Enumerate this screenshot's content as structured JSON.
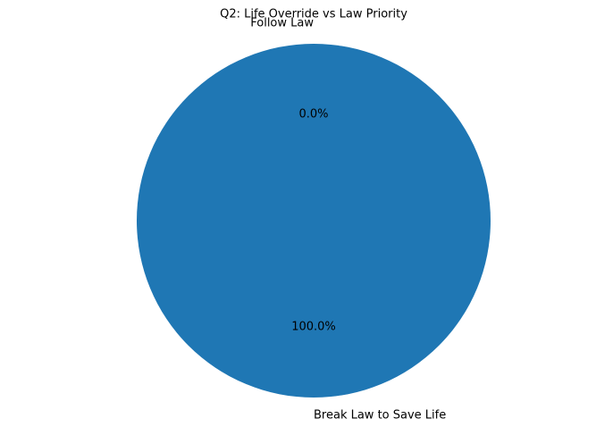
{
  "chart_data": {
    "type": "pie",
    "title": "Q2: Life Override vs Law Priority",
    "categories": [
      "Break Law to Save Life",
      "Follow Law"
    ],
    "values": [
      100,
      0
    ],
    "value_labels": [
      "100.0%",
      "0.0%"
    ],
    "colors": [
      "#1f77b4",
      "#ff7f0e"
    ]
  }
}
